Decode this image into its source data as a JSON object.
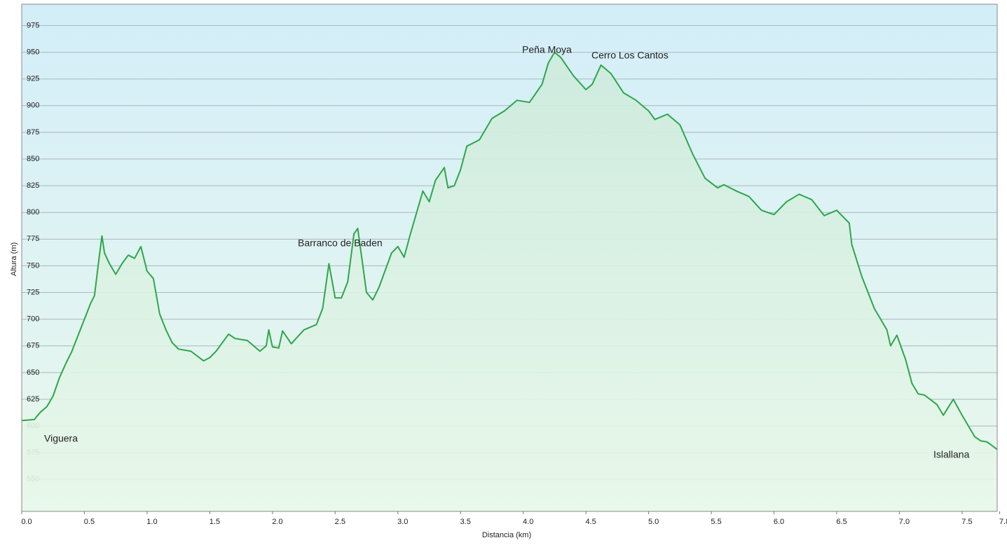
{
  "chart_data": {
    "type": "area",
    "xlabel": "Distancia  (km)",
    "ylabel": "Altura (m)",
    "annotations": [
      "Viguera",
      "Barranco de Baden",
      "Peña Moya",
      "Cerro Los Cantos",
      "Islallana"
    ],
    "x": [
      0.0,
      0.1,
      0.15,
      0.2,
      0.25,
      0.3,
      0.35,
      0.4,
      0.45,
      0.5,
      0.55,
      0.58,
      0.62,
      0.64,
      0.66,
      0.7,
      0.75,
      0.8,
      0.85,
      0.9,
      0.95,
      1.0,
      1.05,
      1.1,
      1.15,
      1.2,
      1.25,
      1.35,
      1.45,
      1.5,
      1.55,
      1.6,
      1.65,
      1.7,
      1.8,
      1.9,
      1.95,
      1.97,
      2.0,
      2.05,
      2.08,
      2.15,
      2.25,
      2.35,
      2.4,
      2.45,
      2.5,
      2.55,
      2.6,
      2.65,
      2.68,
      2.75,
      2.8,
      2.85,
      2.95,
      3.0,
      3.05,
      3.1,
      3.2,
      3.25,
      3.3,
      3.37,
      3.4,
      3.45,
      3.5,
      3.55,
      3.65,
      3.75,
      3.85,
      3.95,
      4.05,
      4.15,
      4.2,
      4.25,
      4.3,
      4.4,
      4.5,
      4.55,
      4.62,
      4.7,
      4.8,
      4.9,
      5.0,
      5.05,
      5.15,
      5.25,
      5.35,
      5.45,
      5.55,
      5.6,
      5.7,
      5.8,
      5.9,
      6.0,
      6.1,
      6.2,
      6.3,
      6.4,
      6.5,
      6.6,
      6.62,
      6.7,
      6.8,
      6.9,
      6.93,
      6.98,
      7.05,
      7.1,
      7.15,
      7.2,
      7.3,
      7.35,
      7.43,
      7.5,
      7.6,
      7.65,
      7.7,
      7.78
    ],
    "series": [
      {
        "name": "Altura",
        "color": "#2ea64b",
        "values": [
          605,
          606,
          613,
          618,
          628,
          645,
          658,
          670,
          685,
          700,
          715,
          722,
          760,
          778,
          762,
          752,
          742,
          752,
          760,
          757,
          768,
          745,
          738,
          705,
          690,
          678,
          672,
          670,
          661,
          664,
          670,
          678,
          686,
          682,
          680,
          670,
          675,
          690,
          674,
          673,
          689,
          677,
          690,
          695,
          710,
          752,
          720,
          720,
          735,
          780,
          785,
          725,
          718,
          730,
          762,
          768,
          758,
          780,
          820,
          810,
          830,
          842,
          823,
          825,
          840,
          862,
          868,
          888,
          895,
          905,
          903,
          920,
          940,
          950,
          945,
          928,
          915,
          920,
          938,
          930,
          912,
          905,
          895,
          887,
          892,
          882,
          855,
          832,
          823,
          826,
          820,
          815,
          802,
          798,
          810,
          817,
          812,
          797,
          802,
          790,
          770,
          740,
          710,
          690,
          675,
          685,
          662,
          640,
          630,
          629,
          620,
          610,
          625,
          610,
          590,
          586,
          585,
          578
        ]
      }
    ],
    "xlim": [
      0,
      7.78
    ],
    "ylim": [
      520,
      995
    ],
    "xticks": [
      {
        "value": 0,
        "label": "0.0"
      },
      0.5,
      {
        "value": 1,
        "label": "1.0"
      },
      1.5,
      {
        "value": 2,
        "label": "2.0"
      },
      2.5,
      {
        "value": 3,
        "label": "3.0"
      },
      3.5,
      {
        "value": 4,
        "label": "4.0"
      },
      4.5,
      {
        "value": 5,
        "label": "5.0"
      },
      5.5,
      {
        "value": 6,
        "label": "6.0"
      },
      6.5,
      {
        "value": 7,
        "label": "7.0"
      },
      7.5,
      7.8
    ],
    "yticks": [
      550,
      575,
      600,
      625,
      650,
      675,
      700,
      725,
      750,
      775,
      800,
      825,
      850,
      875,
      900,
      925,
      950,
      975
    ],
    "grid": true
  }
}
